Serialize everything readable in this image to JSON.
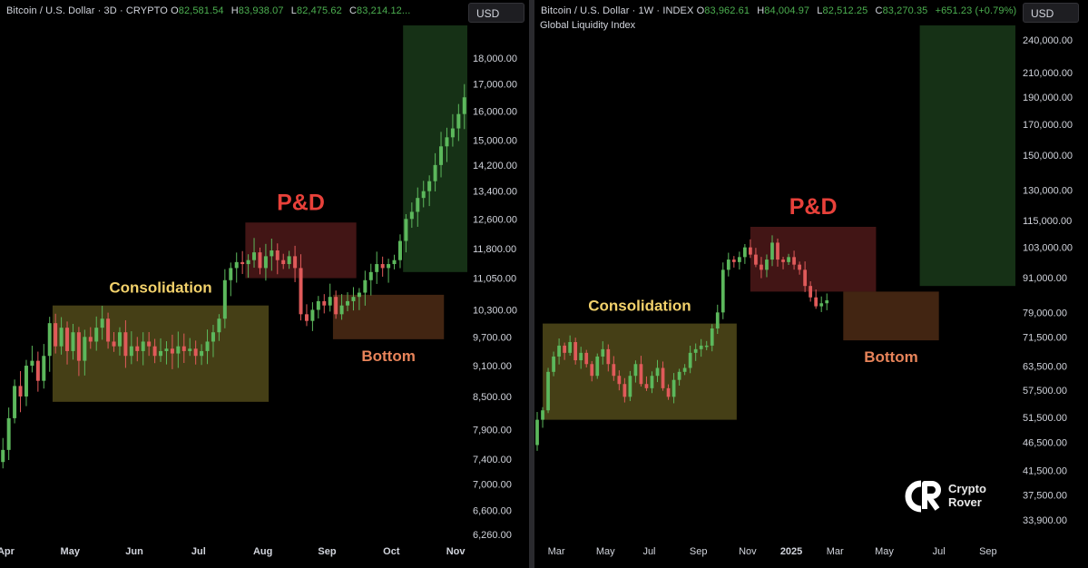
{
  "left_panel": {
    "header": {
      "symbol": "Bitcoin / U.S. Dollar · 3D · CRYPTO",
      "o_label": "O",
      "o_value": "82,581.54",
      "h_label": "H",
      "h_value": "83,938.07",
      "l_label": "L",
      "l_value": "82,475.62",
      "c_label": "C",
      "c_value": "83,214.12..."
    },
    "currency_button": "USD"
  },
  "right_panel": {
    "header": {
      "symbol": "Bitcoin / U.S. Dollar · 1W · INDEX",
      "o_label": "O",
      "o_value": "83,962.61",
      "h_label": "H",
      "h_value": "84,004.97",
      "l_label": "L",
      "l_value": "82,512.25",
      "c_label": "C",
      "c_value": "83,270.35",
      "change": "+651.23 (+0.79%)"
    },
    "subtitle": "Global Liquidity Index",
    "currency_button": "USD"
  },
  "watermark": {
    "line1": "Crypto",
    "line2": "Rover"
  },
  "colors": {
    "up": "#5cb85c",
    "down": "#e05a5a",
    "consolidation_fill": "rgba(125,115,40,0.55)",
    "pd_fill": "rgba(110,35,35,0.6)",
    "bottom_fill": "rgba(110,62,30,0.6)",
    "target_fill": "rgba(36,82,36,0.6)",
    "consolidation_text": "#f2d16b",
    "pd_text": "#e8413a",
    "bottom_text": "#e8845a"
  },
  "chart_data": [
    {
      "type": "candlestick",
      "name": "left",
      "y_scale": "log",
      "ylim": [
        6000,
        21000
      ],
      "y_ticks": [
        "18,000.00",
        "17,000.00",
        "16,000.00",
        "15,000.00",
        "14,200.00",
        "13,400.00",
        "12,600.00",
        "11,800.00",
        "11,050.00",
        "10,300.00",
        "9,700.00",
        "9,100.00",
        "8,500.00",
        "7,900.00",
        "7,400.00",
        "7,000.00",
        "6,600.00",
        "6,260.00"
      ],
      "x_labels": [
        "Apr",
        "May",
        "Jun",
        "Jul",
        "Aug",
        "Sep",
        "Oct",
        "Nov"
      ],
      "x_range": [
        0,
        80
      ],
      "x_label_pos": [
        1,
        12,
        23,
        34,
        45,
        56,
        67,
        78
      ],
      "annotations": [
        {
          "label": "Consolidation",
          "kind": "consolidation",
          "x0": 9,
          "x1": 46,
          "y0": 8400,
          "y1": 10400
        },
        {
          "label": "P&D",
          "kind": "pd",
          "x0": 42,
          "x1": 61,
          "y0": 11050,
          "y1": 12500
        },
        {
          "label": "Bottom",
          "kind": "bottom",
          "x0": 57,
          "x1": 76,
          "y0": 9650,
          "y1": 10650
        },
        {
          "label": "",
          "kind": "target",
          "x0": 69,
          "x1": 90,
          "y0": 11200,
          "y1": 21000
        }
      ],
      "candles_close": [
        6600,
        6750,
        6500,
        6850,
        6950,
        7100,
        6800,
        7000,
        7350,
        7550,
        8100,
        8700,
        8500,
        9100,
        9200,
        8800,
        9300,
        10000,
        9500,
        9900,
        9400,
        9800,
        9200,
        9700,
        9600,
        9900,
        10100,
        9600,
        9500,
        9800,
        9300,
        9500,
        9400,
        9600,
        9500,
        9300,
        9400,
        9450,
        9350,
        9500,
        9400,
        9450,
        9300,
        9400,
        9600,
        9800,
        10100,
        11000,
        11300,
        11450,
        11400,
        11500,
        11700,
        11300,
        11600,
        11750,
        11500,
        11400,
        11600,
        11300,
        10200,
        10050,
        10300,
        10500,
        10400,
        10600,
        10200,
        10400,
        10500,
        10600,
        10700,
        11000,
        11200,
        11400,
        11300,
        11400,
        11500,
        12000,
        12600,
        12800,
        13200,
        13400,
        13700,
        14200,
        14800,
        15100,
        15400,
        15900,
        16500,
        17200,
        17800,
        18200,
        18400
      ],
      "x_start": -9
    },
    {
      "type": "candlestick",
      "name": "right",
      "y_scale": "log",
      "ylim": [
        32000,
        260000
      ],
      "y_ticks": [
        "240,000.00",
        "210,000.00",
        "190,000.00",
        "170,000.00",
        "150,000.00",
        "130,000.00",
        "115,000.00",
        "103,000.00",
        "91,000.00",
        "79,000.00",
        "71,500.00",
        "63,500.00",
        "57,500.00",
        "51,500.00",
        "46,500.00",
        "41,500.00",
        "37,500.00",
        "33,900.00"
      ],
      "x_labels": [
        "Mar",
        "May",
        "Jul",
        "Sep",
        "Nov",
        "2025",
        "Mar",
        "May",
        "Jul",
        "Sep"
      ],
      "x_range": [
        0,
        88
      ],
      "x_label_pos": [
        4,
        13,
        21,
        30,
        39,
        47,
        55,
        64,
        74,
        83
      ],
      "annotations": [
        {
          "label": "Consolidation",
          "kind": "consolidation",
          "x0": 1.5,
          "x1": 37,
          "y0": 51000,
          "y1": 75500
        },
        {
          "label": "P&D",
          "kind": "pd",
          "x0": 39.5,
          "x1": 62.5,
          "y0": 86000,
          "y1": 112000
        },
        {
          "label": "Bottom",
          "kind": "bottom",
          "x0": 56.5,
          "x1": 74,
          "y0": 70500,
          "y1": 86000
        },
        {
          "label": "",
          "kind": "target",
          "x0": 70.5,
          "x1": 93,
          "y0": 88000,
          "y1": 260000
        }
      ],
      "candles_close": [
        42000,
        46000,
        51000,
        53000,
        62000,
        66000,
        69000,
        67000,
        70000,
        65000,
        67000,
        64000,
        61000,
        66000,
        68000,
        64000,
        61000,
        59000,
        56000,
        61000,
        64000,
        59000,
        58000,
        61000,
        63000,
        58000,
        56000,
        60000,
        62000,
        63000,
        67000,
        68000,
        69000,
        69000,
        74000,
        79000,
        94000,
        98000,
        97000,
        99000,
        103000,
        100000,
        96000,
        94000,
        98000,
        105000,
        98000,
        97000,
        99000,
        96000,
        94000,
        88000,
        84000,
        81000,
        82000,
        83000
      ],
      "x_start": -2
    }
  ]
}
